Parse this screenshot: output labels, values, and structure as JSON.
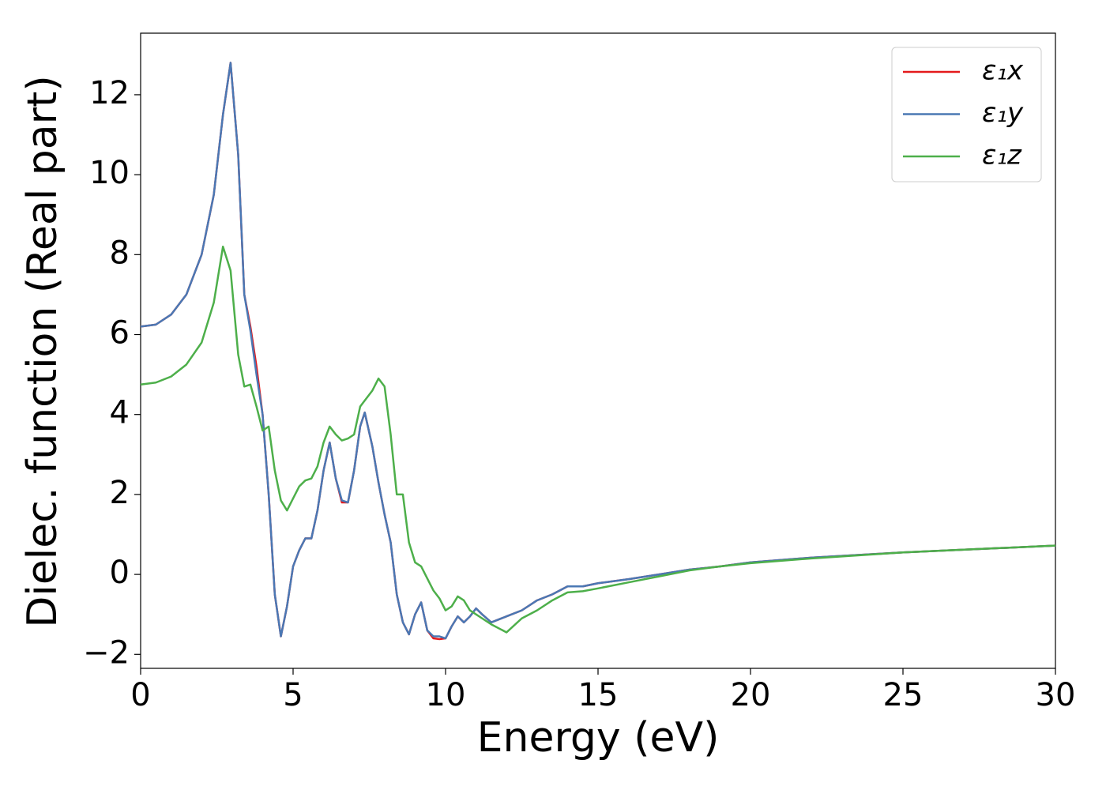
{
  "chart_data": {
    "type": "line",
    "xlabel": "Energy (eV)",
    "ylabel": "Dielec. function (Real part)",
    "x": [
      0,
      0.5,
      1,
      1.5,
      2,
      2.4,
      2.7,
      2.95,
      3.2,
      3.4,
      3.6,
      3.8,
      4,
      4.2,
      4.4,
      4.6,
      4.8,
      5,
      5.2,
      5.4,
      5.6,
      5.8,
      6,
      6.2,
      6.4,
      6.6,
      6.8,
      7,
      7.2,
      7.35,
      7.6,
      7.8,
      8,
      8.2,
      8.4,
      8.6,
      8.8,
      9,
      9.2,
      9.4,
      9.6,
      9.8,
      10,
      10.2,
      10.4,
      10.6,
      10.8,
      11,
      11.2,
      11.5,
      12,
      12.5,
      13,
      13.5,
      14,
      14.5,
      15,
      16,
      17,
      18,
      19,
      20,
      22,
      25,
      30
    ],
    "series": [
      {
        "name": "ε₁x",
        "color": "#e41a1c",
        "values": [
          6.2,
          6.25,
          6.5,
          7.0,
          8.0,
          9.5,
          11.5,
          12.8,
          10.5,
          7.0,
          6.2,
          5.2,
          4.0,
          2.0,
          -0.5,
          -1.55,
          -0.8,
          0.2,
          0.6,
          0.9,
          0.9,
          1.6,
          2.6,
          3.3,
          2.4,
          1.8,
          1.8,
          2.6,
          3.7,
          4.05,
          3.2,
          2.3,
          1.5,
          0.8,
          -0.5,
          -1.2,
          -1.5,
          -1.0,
          -0.7,
          -1.4,
          -1.6,
          -1.62,
          -1.6,
          -1.3,
          -1.05,
          -1.2,
          -1.05,
          -0.85,
          -1.0,
          -1.2,
          -1.05,
          -0.9,
          -0.65,
          -0.5,
          -0.3,
          -0.3,
          -0.22,
          -0.12,
          0.0,
          0.12,
          0.2,
          0.3,
          0.42,
          0.55,
          0.72
        ]
      },
      {
        "name": "ε₁y",
        "color": "#4a78b4",
        "values": [
          6.2,
          6.25,
          6.5,
          7.0,
          8.0,
          9.5,
          11.5,
          12.8,
          10.5,
          7.0,
          6.1,
          5.0,
          4.0,
          2.0,
          -0.5,
          -1.55,
          -0.8,
          0.2,
          0.6,
          0.9,
          0.9,
          1.6,
          2.6,
          3.3,
          2.4,
          1.85,
          1.8,
          2.6,
          3.7,
          4.05,
          3.2,
          2.3,
          1.5,
          0.8,
          -0.5,
          -1.2,
          -1.5,
          -1.0,
          -0.7,
          -1.4,
          -1.55,
          -1.55,
          -1.6,
          -1.3,
          -1.05,
          -1.2,
          -1.05,
          -0.85,
          -1.0,
          -1.2,
          -1.05,
          -0.9,
          -0.65,
          -0.5,
          -0.3,
          -0.3,
          -0.22,
          -0.12,
          0.0,
          0.12,
          0.2,
          0.3,
          0.42,
          0.55,
          0.72
        ]
      },
      {
        "name": "ε₁z",
        "color": "#4daf4a",
        "values": [
          4.75,
          4.8,
          4.95,
          5.25,
          5.8,
          6.8,
          8.2,
          7.6,
          5.5,
          4.7,
          4.75,
          4.2,
          3.6,
          3.7,
          2.6,
          1.85,
          1.6,
          1.9,
          2.2,
          2.35,
          2.4,
          2.7,
          3.3,
          3.7,
          3.5,
          3.35,
          3.4,
          3.5,
          4.2,
          4.35,
          4.6,
          4.9,
          4.7,
          3.5,
          2.0,
          2.0,
          0.8,
          0.3,
          0.2,
          -0.1,
          -0.4,
          -0.6,
          -0.9,
          -0.8,
          -0.55,
          -0.65,
          -0.9,
          -1.0,
          -1.1,
          -1.25,
          -1.45,
          -1.1,
          -0.9,
          -0.65,
          -0.45,
          -0.42,
          -0.35,
          -0.2,
          -0.05,
          0.1,
          0.2,
          0.28,
          0.4,
          0.55,
          0.72
        ]
      }
    ],
    "xlim": [
      0,
      30
    ],
    "xticks": [
      0,
      5,
      10,
      15,
      20,
      25,
      30
    ],
    "ylim": [
      -2.35,
      13.54
    ],
    "yticks": [
      {
        "value": -2,
        "label": "−2"
      },
      0,
      2,
      4,
      6,
      8,
      10,
      12
    ],
    "grid": false,
    "legend": "upper right"
  }
}
